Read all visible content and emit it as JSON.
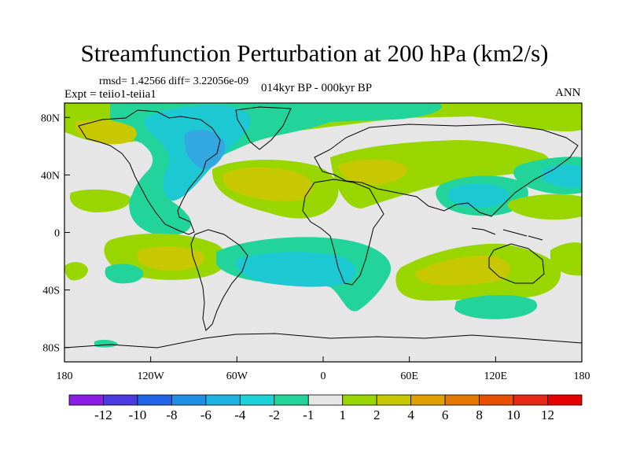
{
  "title": "Streamfunction Perturbation at 200 hPa (km2/s)",
  "stats": "rmsd= 1.42566  diff= 3.22056e-09",
  "experiment": "Expt = teiio1-teiia1",
  "period": "014kyr BP - 000kyr BP",
  "season": "ANN",
  "colors": {
    "ocean_bg": "#e6e6e6",
    "pos1": "#99d600",
    "pos2": "#c8c800",
    "neg1": "#23d49a",
    "neg2": "#1cc8d2",
    "neg3": "#33a8e0"
  },
  "chart_data": {
    "type": "map-contour",
    "projection": "cylindrical-equidistant",
    "lon_range": [
      -180,
      180
    ],
    "lat_range": [
      -90,
      90
    ],
    "x_ticks": [
      {
        "lon": -180,
        "label": "180"
      },
      {
        "lon": -120,
        "label": "120W"
      },
      {
        "lon": -60,
        "label": "60W"
      },
      {
        "lon": 0,
        "label": "0"
      },
      {
        "lon": 60,
        "label": "60E"
      },
      {
        "lon": 120,
        "label": "120E"
      },
      {
        "lon": 180,
        "label": "180"
      }
    ],
    "y_ticks": [
      {
        "lat": 80,
        "label": "80N"
      },
      {
        "lat": 40,
        "label": "40N"
      },
      {
        "lat": 0,
        "label": "0"
      },
      {
        "lat": -40,
        "label": "40S"
      },
      {
        "lat": -80,
        "label": "80S"
      }
    ],
    "colorbar": {
      "labels": [
        "-12",
        "-10",
        "-8",
        "-6",
        "-4",
        "-2",
        "-1",
        "1",
        "2",
        "4",
        "6",
        "8",
        "10",
        "12"
      ],
      "colors": [
        "#8a1ee6",
        "#4a3ae0",
        "#1f64e6",
        "#1e8fe6",
        "#1eb4e6",
        "#1cd2d8",
        "#23d49a",
        "#e6e6e6",
        "#99d600",
        "#c8c800",
        "#e0a000",
        "#e67800",
        "#e65000",
        "#e62814",
        "#e60000"
      ]
    }
  }
}
